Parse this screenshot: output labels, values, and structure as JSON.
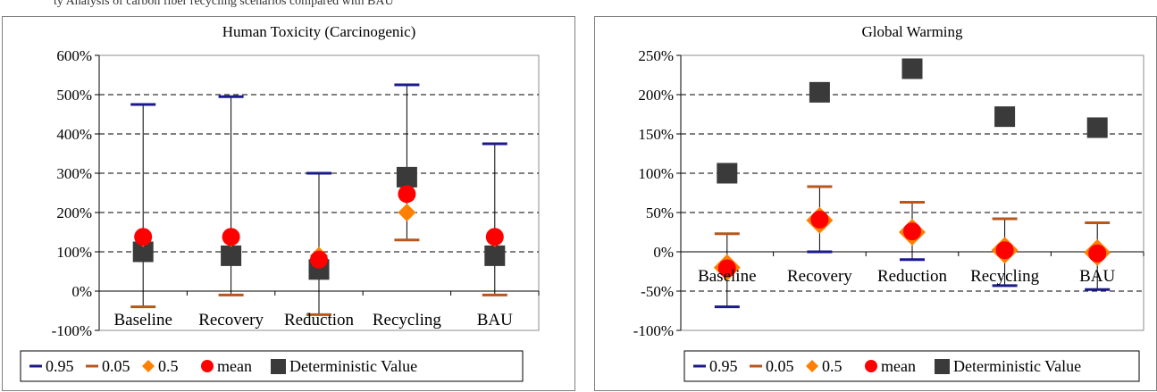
{
  "page": {
    "header_fragment": "ty Analysis of carbon fiber recycling scenarios compared with BAU"
  },
  "legend_labels": [
    "0.95",
    "0.05",
    "0.5",
    "mean",
    "Deterministic Value"
  ],
  "colors": {
    "q95": "#1a1a8c",
    "q05": "#b8561b",
    "median": "#ff7f00",
    "mean": "#ff0000",
    "deterministic": "#3a3a3a"
  },
  "chart_data": [
    {
      "type": "scatter",
      "title": "Human Toxicity (Carcinogenic)",
      "categories": [
        "Baseline",
        "Recovery",
        "Reduction",
        "Recycling",
        "BAU"
      ],
      "ylim": [
        -100,
        600
      ],
      "yticks": [
        -100,
        0,
        100,
        200,
        300,
        400,
        500,
        600
      ],
      "ytick_labels": [
        "-100%",
        "0%",
        "100%",
        "200%",
        "300%",
        "400%",
        "500%",
        "600%"
      ],
      "grid": "dashed horizontal",
      "legend_position": "bottom",
      "series": [
        {
          "name": "0.95",
          "values": [
            475,
            495,
            300,
            525,
            375
          ]
        },
        {
          "name": "0.05",
          "values": [
            -40,
            -10,
            -60,
            130,
            -10
          ]
        },
        {
          "name": "0.5",
          "values": [
            135,
            135,
            90,
            200,
            135
          ]
        },
        {
          "name": "mean",
          "values": [
            138,
            138,
            80,
            247,
            138
          ]
        },
        {
          "name": "Deterministic Value",
          "values": [
            100,
            90,
            55,
            290,
            90
          ]
        }
      ]
    },
    {
      "type": "scatter",
      "title": "Global Warming",
      "categories": [
        "Baseline",
        "Recovery",
        "Reduction",
        "Recycling",
        "BAU"
      ],
      "ylim": [
        -100,
        250
      ],
      "yticks": [
        -100,
        -50,
        0,
        50,
        100,
        150,
        200,
        250
      ],
      "ytick_labels": [
        "-100%",
        "-50%",
        "0%",
        "50%",
        "100%",
        "150%",
        "200%",
        "250%"
      ],
      "grid": "dashed horizontal",
      "legend_position": "bottom",
      "series": [
        {
          "name": "0.95",
          "values": [
            -70,
            0,
            -10,
            -43,
            -48
          ]
        },
        {
          "name": "0.05",
          "values": [
            23,
            83,
            63,
            42,
            37
          ]
        },
        {
          "name": "0.5",
          "values": [
            -20,
            40,
            25,
            2,
            -1
          ]
        },
        {
          "name": "mean",
          "values": [
            -21,
            41,
            26,
            2,
            -2
          ]
        },
        {
          "name": "Deterministic Value",
          "values": [
            100,
            203,
            233,
            172,
            158
          ]
        }
      ]
    }
  ]
}
